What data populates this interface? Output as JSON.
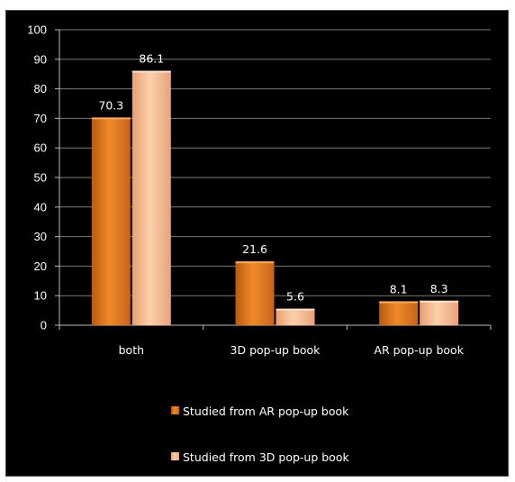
{
  "chart_data": {
    "type": "bar",
    "categories": [
      "both",
      "3D pop-up book",
      "AR pop-up book"
    ],
    "series": [
      {
        "name": "Studied from AR pop-up book",
        "values": [
          70.3,
          21.6,
          8.1
        ],
        "color": "#e07a1e"
      },
      {
        "name": "Studied from 3D pop-up book",
        "values": [
          86.1,
          5.6,
          8.3
        ],
        "color": "#f7b98c"
      }
    ],
    "data_labels": [
      [
        "70.3",
        "21.6",
        "8.1"
      ],
      [
        "86.1",
        "5.6",
        "8.3"
      ]
    ],
    "ylim": [
      0,
      100
    ],
    "yticks": [
      0,
      10,
      20,
      30,
      40,
      50,
      60,
      70,
      80,
      90,
      100
    ],
    "grid": true,
    "legend_position": "bottom",
    "background": "#000000",
    "gridline_color": "#7a7a7a"
  }
}
